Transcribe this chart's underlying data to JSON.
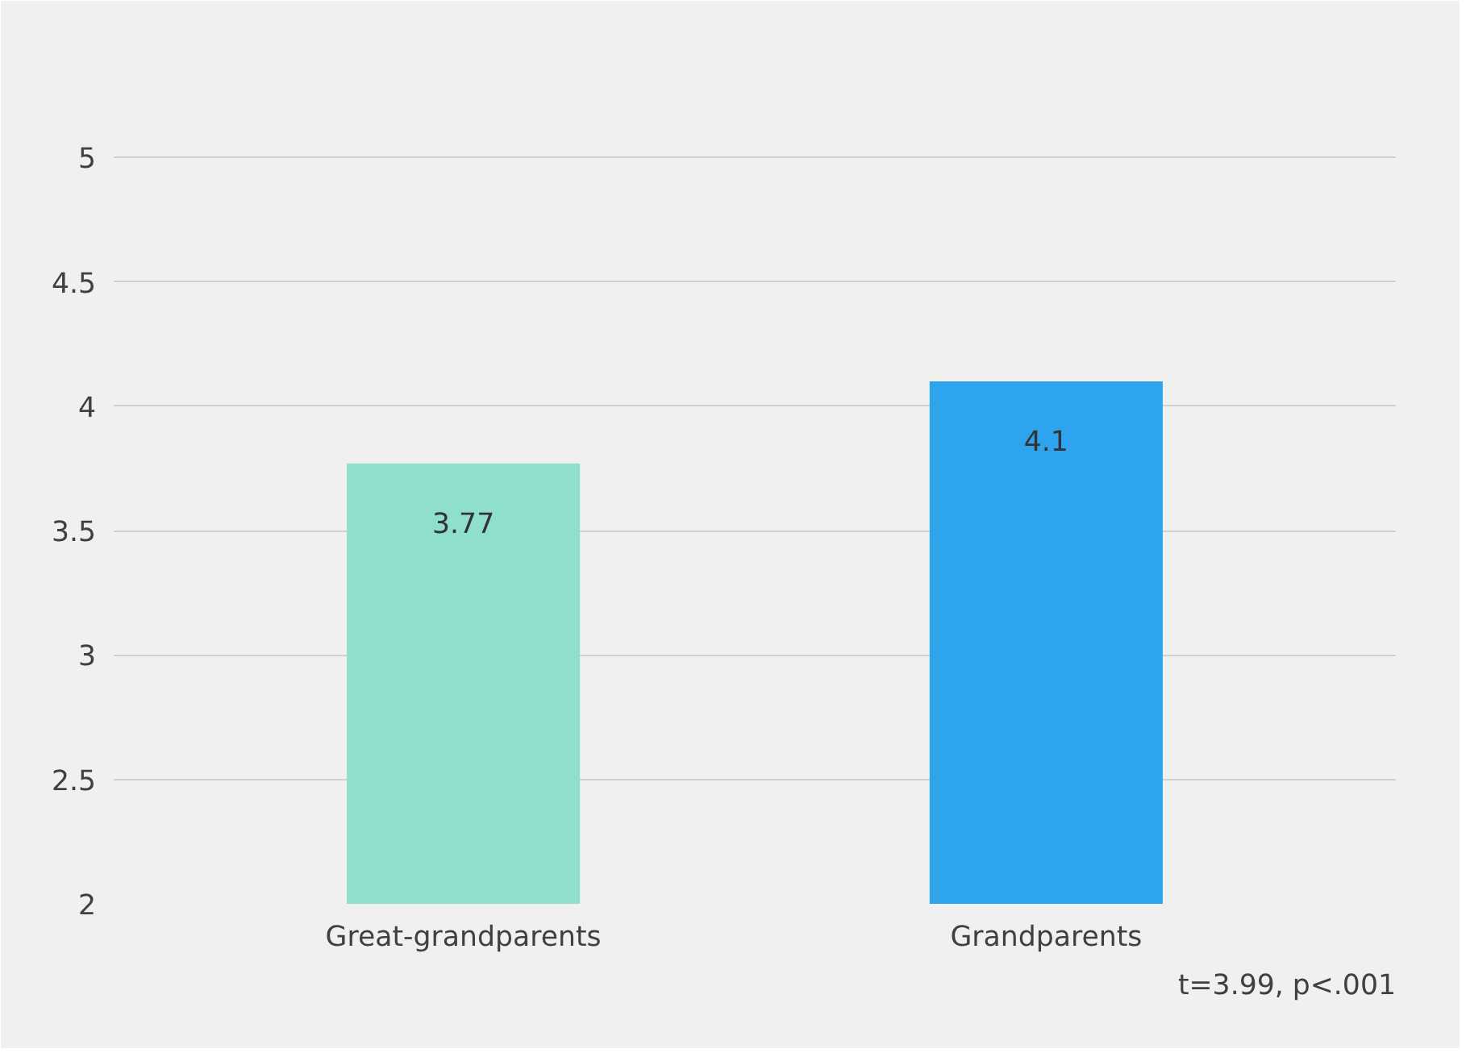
{
  "chart_data": {
    "type": "bar",
    "categories": [
      "Great-grandparents",
      "Grandparents"
    ],
    "values": [
      3.77,
      4.1
    ],
    "colors": [
      "#8fdfcf",
      "#2ea3ee"
    ],
    "ylim": [
      2,
      5.5
    ],
    "yticks": [
      2,
      2.5,
      3,
      3.5,
      4,
      4.5,
      5,
      {
        "value": 5.5,
        "label": null
      }
    ],
    "grid": "y",
    "data_labels": true,
    "annotations": [
      "t=3.99, p<.001"
    ]
  }
}
